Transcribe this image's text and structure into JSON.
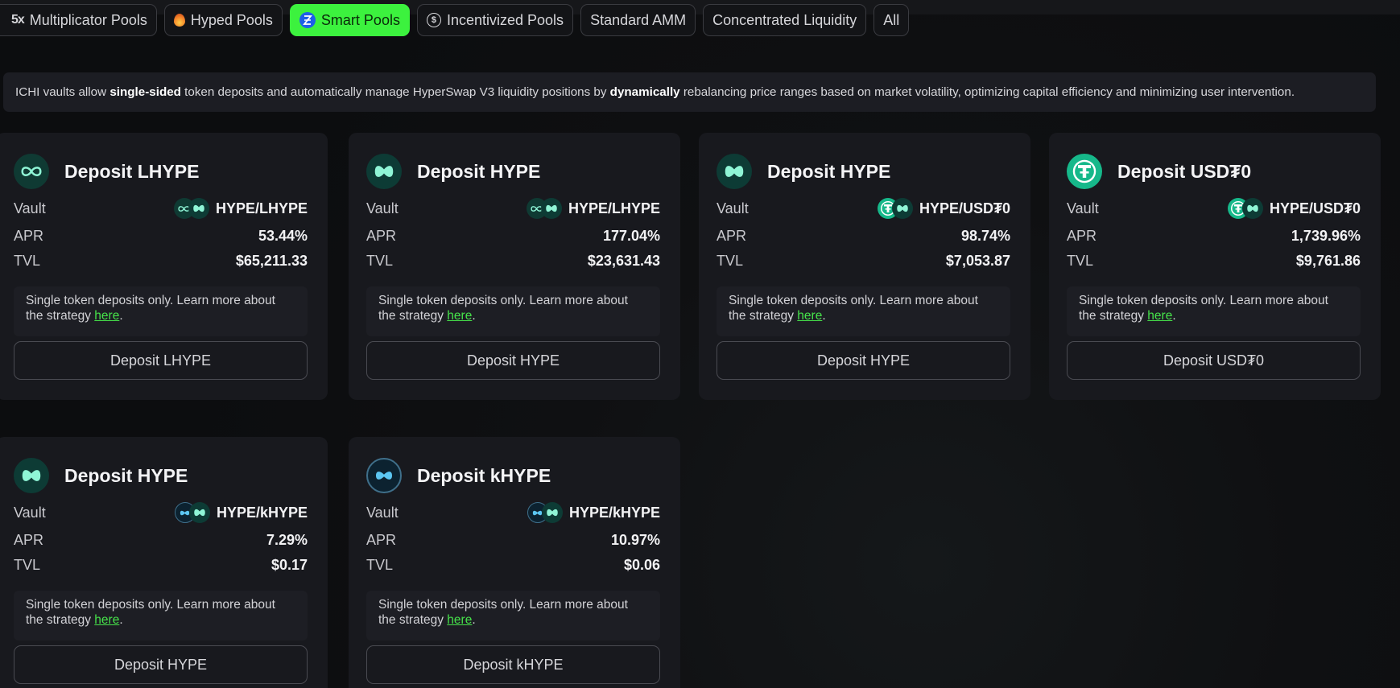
{
  "tabs": [
    {
      "label": "Multiplicator Pools",
      "icon": "multiplier-icon",
      "icon_text": "5x"
    },
    {
      "label": "Hyped Pools",
      "icon": "fire-icon"
    },
    {
      "label": "Smart Pools",
      "icon": "smart-pools-icon",
      "active": true
    },
    {
      "label": "Incentivized Pools",
      "icon": "dollar-icon"
    },
    {
      "label": "Standard AMM"
    },
    {
      "label": "Concentrated Liquidity"
    },
    {
      "label": "All"
    }
  ],
  "banner": {
    "t1": "ICHI vaults allow ",
    "b1": "single-sided",
    "t2": " token deposits and automatically manage HyperSwap V3 liquidity positions by ",
    "b2": "dynamically",
    "t3": " rebalancing price ranges based on market volatility, optimizing capital efficiency and minimizing user intervention."
  },
  "labels": {
    "vault": "Vault",
    "apr": "APR",
    "tvl": "TVL",
    "note": "Single token deposits only. Learn more about the strategy ",
    "here": "here",
    "period": "."
  },
  "cards": [
    {
      "title": "Deposit LHYPE",
      "token_icon": "lhype-icon",
      "pair": "HYPE/LHYPE",
      "apr": "53.44%",
      "tvl": "$65,211.33",
      "button": "Deposit LHYPE"
    },
    {
      "title": "Deposit HYPE",
      "token_icon": "hype-icon",
      "pair": "HYPE/LHYPE",
      "apr": "177.04%",
      "tvl": "$23,631.43",
      "button": "Deposit HYPE"
    },
    {
      "title": "Deposit HYPE",
      "token_icon": "hype-icon",
      "pair": "HYPE/USD₮0",
      "apr": "98.74%",
      "tvl": "$7,053.87",
      "button": "Deposit HYPE"
    },
    {
      "title": "Deposit USD₮0",
      "token_icon": "usdt0-icon",
      "pair": "HYPE/USD₮0",
      "apr": "1,739.96%",
      "tvl": "$9,761.86",
      "button": "Deposit USD₮0"
    },
    {
      "title": "Deposit HYPE",
      "token_icon": "hype-icon",
      "pair": "HYPE/kHYPE",
      "apr": "7.29%",
      "tvl": "$0.17",
      "button": "Deposit HYPE"
    },
    {
      "title": "Deposit kHYPE",
      "token_icon": "khype-icon",
      "pair": "HYPE/kHYPE",
      "apr": "10.97%",
      "tvl": "$0.06",
      "button": "Deposit kHYPE"
    }
  ],
  "colors": {
    "accent": "#3cf23e",
    "link": "#46e34a",
    "hype": "#8ff5d6",
    "usdt": "#16b88a",
    "card_bg": "#18191e"
  }
}
